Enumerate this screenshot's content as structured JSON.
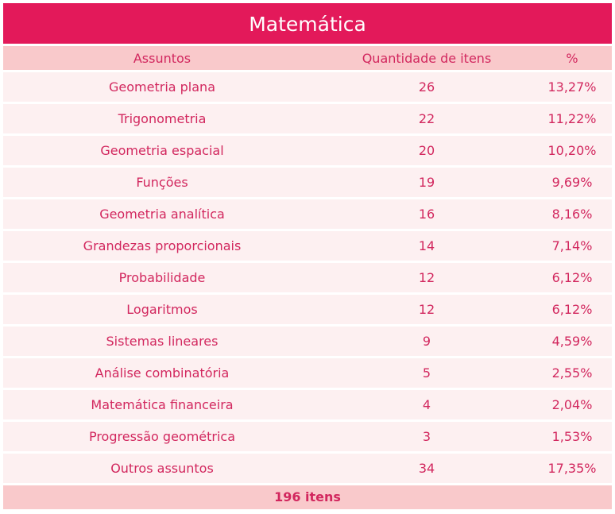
{
  "title": "Matemática",
  "headers": [
    "Assuntos",
    "Quantidade de itens",
    "%"
  ],
  "rows": [
    [
      "Geometria plana",
      "26",
      "13,27%"
    ],
    [
      "Trigonometria",
      "22",
      "11,22%"
    ],
    [
      "Geometria espacial",
      "20",
      "10,20%"
    ],
    [
      "Funções",
      "19",
      "9,69%"
    ],
    [
      "Geometria analítica",
      "16",
      "8,16%"
    ],
    [
      "Grandezas proporcionais",
      "14",
      "7,14%"
    ],
    [
      "Probabilidade",
      "12",
      "6,12%"
    ],
    [
      "Logaritmos",
      "12",
      "6,12%"
    ],
    [
      "Sistemas lineares",
      "9",
      "4,59%"
    ],
    [
      "Análise combinatória",
      "5",
      "2,55%"
    ],
    [
      "Matemática financeira",
      "4",
      "2,04%"
    ],
    [
      "Progressão geométrica",
      "3",
      "1,53%"
    ],
    [
      "Outros assuntos",
      "34",
      "17,35%"
    ]
  ],
  "footer": "196 itens",
  "colors": {
    "title_bg": "#e3195a",
    "header_bg": "#f9c9cb",
    "row_bg": "#fdf0f1",
    "text": "#d2275e"
  }
}
